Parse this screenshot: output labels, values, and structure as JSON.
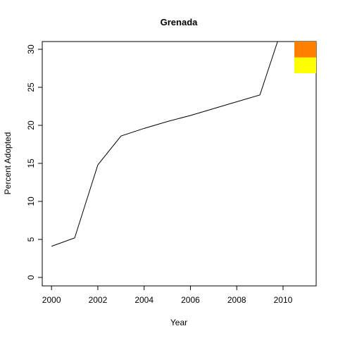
{
  "chart_data": {
    "type": "line",
    "title": "Grenada",
    "xlabel": "Year",
    "ylabel": "Percent Adopted",
    "x": [
      2000,
      2001,
      2002,
      2003,
      2004,
      2005,
      2006,
      2007,
      2008,
      2009,
      2010
    ],
    "series": [
      {
        "color": "#000000",
        "values": [
          4.1,
          5.2,
          14.8,
          18.6,
          19.6,
          20.5,
          21.3,
          22.2,
          23.1,
          24.0,
          33.2
        ]
      }
    ],
    "xlim": [
      1999.6,
      2011.43
    ],
    "ylim": [
      -1.11,
      31.02
    ],
    "xticks": [
      2000,
      2002,
      2004,
      2006,
      2008,
      2010
    ],
    "yticks": [
      0,
      5,
      10,
      15,
      20,
      25,
      30
    ],
    "legend": {
      "position": "topright",
      "colors": [
        "#ff7f00",
        "#ffff00"
      ]
    }
  }
}
